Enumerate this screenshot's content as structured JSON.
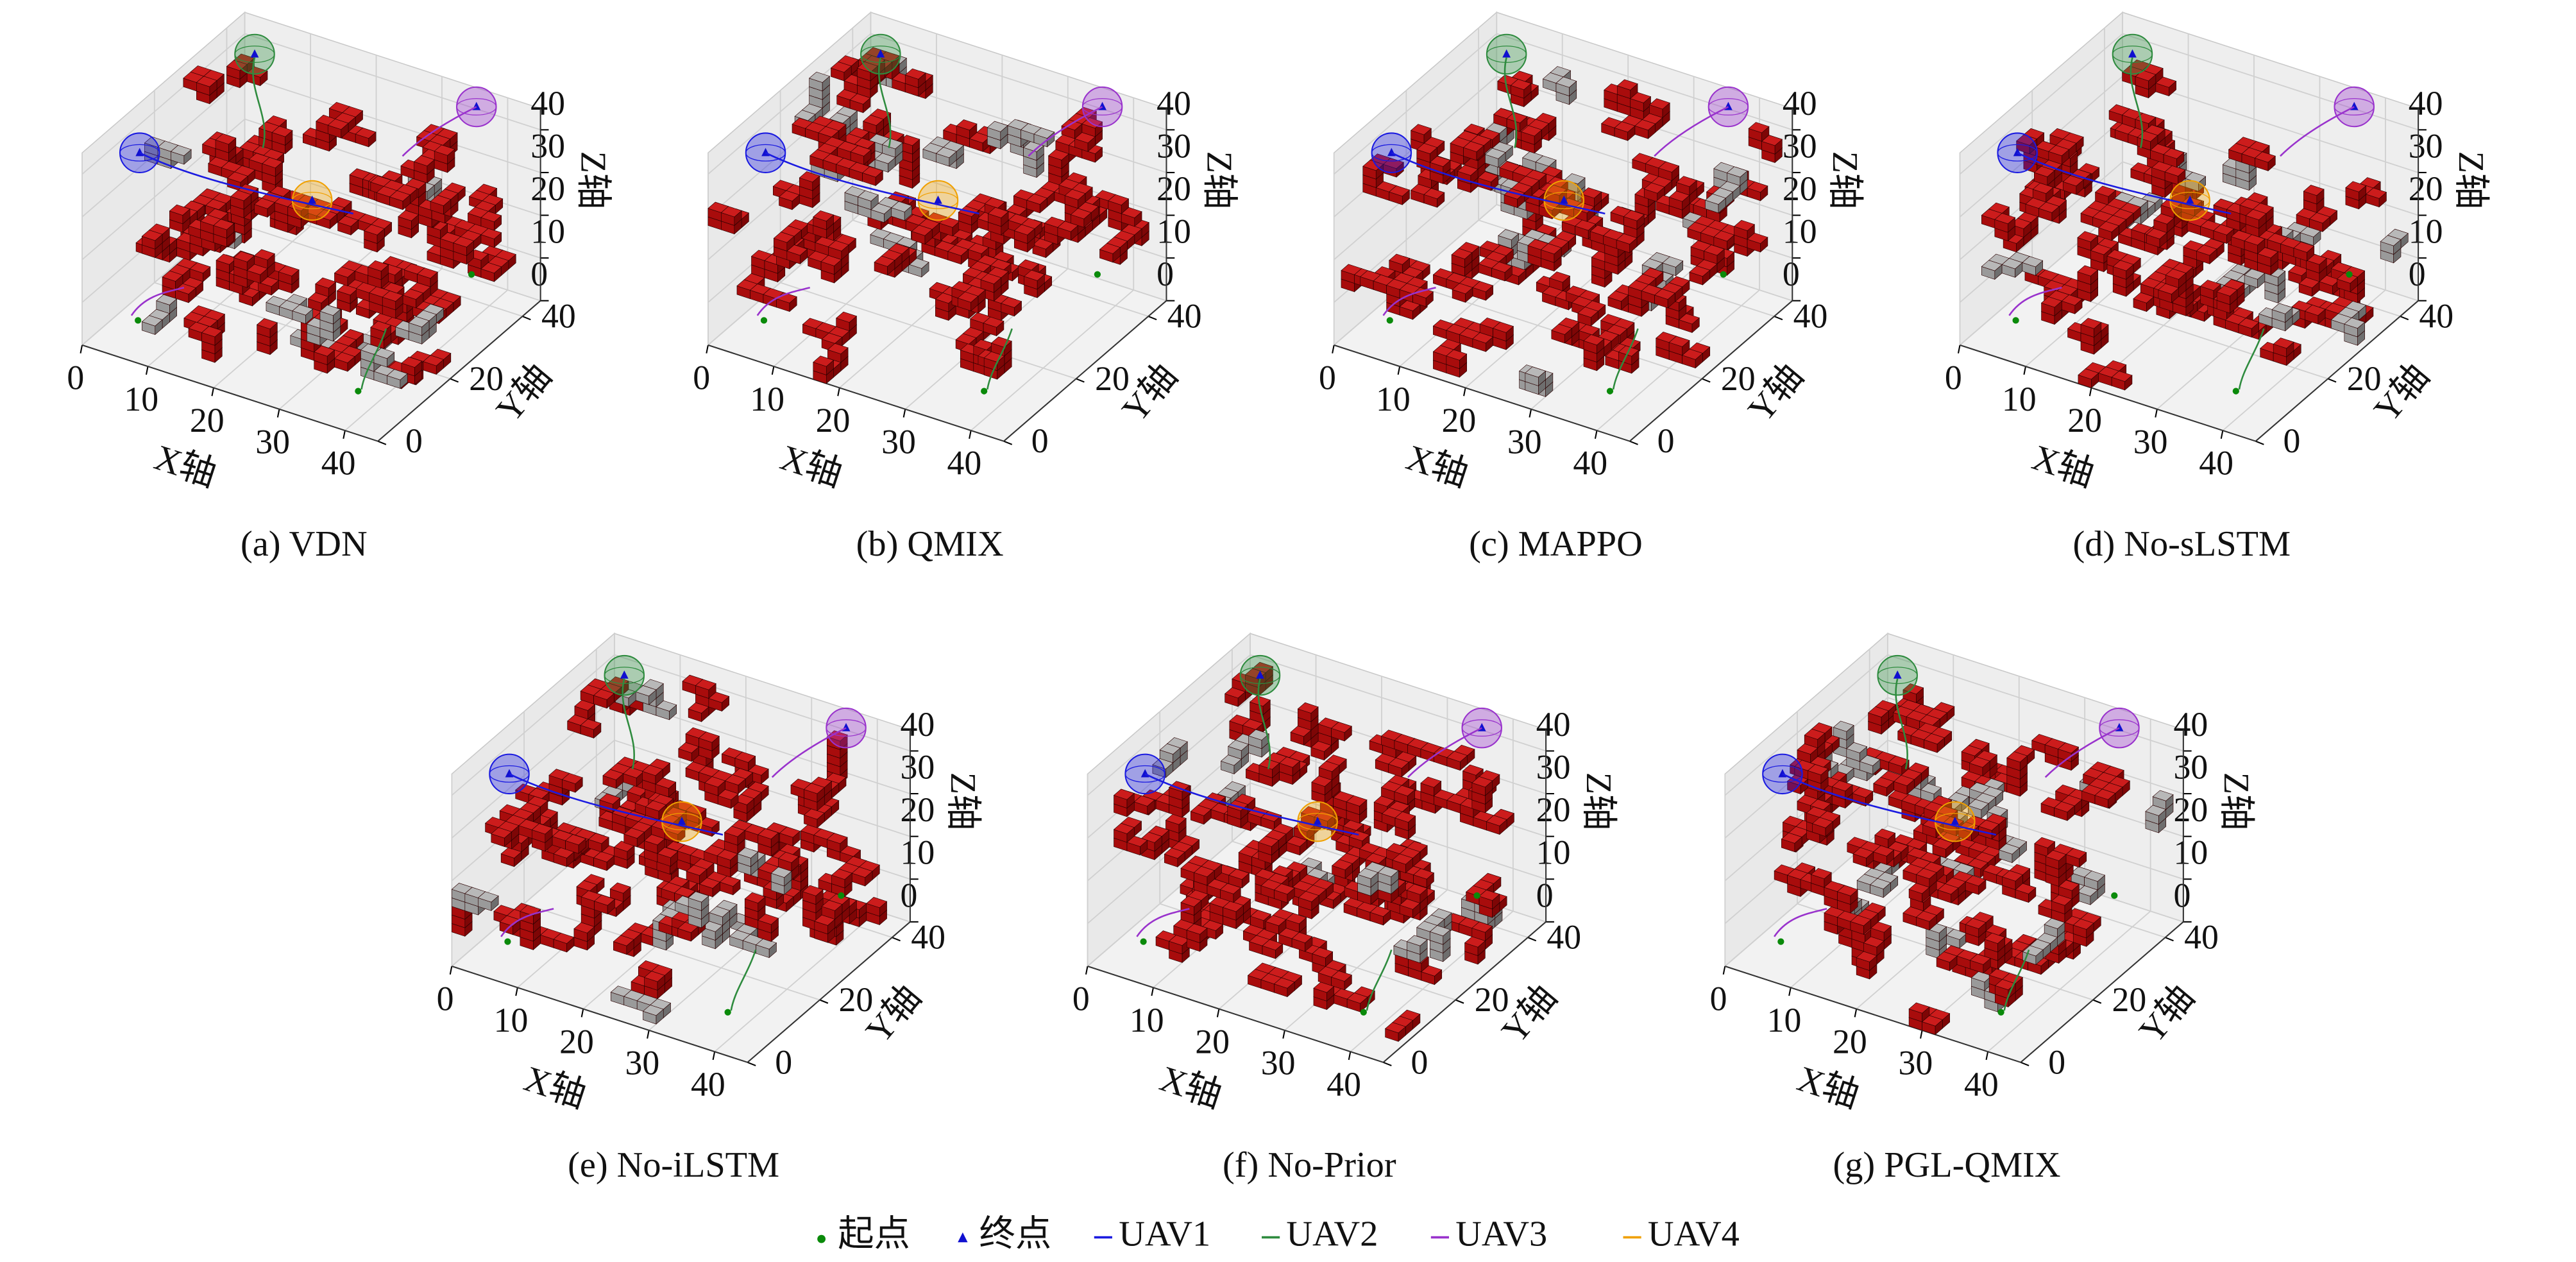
{
  "chart_data": [
    {
      "type": "voxel3d",
      "title": "(a) VDN",
      "xlabel": "X轴",
      "ylabel": "Y轴",
      "zlabel": "Z轴",
      "xlim": [
        0,
        45
      ],
      "ylim": [
        0,
        45
      ],
      "zlim": [
        0,
        45
      ],
      "xticks": [
        0,
        10,
        20,
        30,
        40
      ],
      "yticks": [
        0,
        20,
        40
      ],
      "zticks": [
        0,
        10,
        20,
        30,
        40
      ],
      "grid": true
    },
    {
      "type": "voxel3d",
      "title": "(b) QMIX",
      "xlabel": "X轴",
      "ylabel": "Y轴",
      "zlabel": "Z轴",
      "xlim": [
        0,
        45
      ],
      "ylim": [
        0,
        45
      ],
      "zlim": [
        0,
        45
      ],
      "xticks": [
        0,
        10,
        20,
        30,
        40
      ],
      "yticks": [
        0,
        20,
        40
      ],
      "zticks": [
        0,
        10,
        20,
        30,
        40
      ],
      "grid": true
    },
    {
      "type": "voxel3d",
      "title": "(c) MAPPO",
      "xlabel": "X轴",
      "ylabel": "Y轴",
      "zlabel": "Z轴",
      "xlim": [
        0,
        45
      ],
      "ylim": [
        0,
        45
      ],
      "zlim": [
        0,
        45
      ],
      "xticks": [
        0,
        10,
        20,
        30,
        40
      ],
      "yticks": [
        0,
        20,
        40
      ],
      "zticks": [
        0,
        10,
        20,
        30,
        40
      ],
      "grid": true
    },
    {
      "type": "voxel3d",
      "title": "(d) No-sLSTM",
      "xlabel": "X轴",
      "ylabel": "Y轴",
      "zlabel": "Z轴",
      "xlim": [
        0,
        45
      ],
      "ylim": [
        0,
        45
      ],
      "zlim": [
        0,
        45
      ],
      "xticks": [
        0,
        10,
        20,
        30,
        40
      ],
      "yticks": [
        0,
        20,
        40
      ],
      "zticks": [
        0,
        10,
        20,
        30,
        40
      ],
      "grid": true
    },
    {
      "type": "voxel3d",
      "title": "(e) No-iLSTM",
      "xlabel": "X轴",
      "ylabel": "Y轴",
      "zlabel": "Z轴",
      "xlim": [
        0,
        45
      ],
      "ylim": [
        0,
        45
      ],
      "zlim": [
        0,
        45
      ],
      "xticks": [
        0,
        10,
        20,
        30,
        40
      ],
      "yticks": [
        0,
        20,
        40
      ],
      "zticks": [
        0,
        10,
        20,
        30,
        40
      ],
      "grid": true
    },
    {
      "type": "voxel3d",
      "title": "(f) No-Prior",
      "xlabel": "X轴",
      "ylabel": "Y轴",
      "zlabel": "Z轴",
      "xlim": [
        0,
        45
      ],
      "ylim": [
        0,
        45
      ],
      "zlim": [
        0,
        45
      ],
      "xticks": [
        0,
        10,
        20,
        30,
        40
      ],
      "yticks": [
        0,
        20,
        40
      ],
      "zticks": [
        0,
        10,
        20,
        30,
        40
      ],
      "grid": true
    },
    {
      "type": "voxel3d",
      "title": "(g) PGL-QMIX",
      "xlabel": "X轴",
      "ylabel": "Y轴",
      "zlabel": "Z轴",
      "xlim": [
        0,
        45
      ],
      "ylim": [
        0,
        45
      ],
      "zlim": [
        0,
        45
      ],
      "xticks": [
        0,
        10,
        20,
        30,
        40
      ],
      "yticks": [
        0,
        20,
        40
      ],
      "zticks": [
        0,
        10,
        20,
        30,
        40
      ],
      "grid": true
    }
  ],
  "legend": {
    "items": [
      {
        "name": "起点",
        "color": "#0a8a0a",
        "marker": "dot"
      },
      {
        "name": "终点",
        "color": "#1010d0",
        "marker": "triangle"
      },
      {
        "name": "UAV1",
        "color": "#1a1ae0",
        "marker": "line"
      },
      {
        "name": "UAV2",
        "color": "#2e8b3e",
        "marker": "line"
      },
      {
        "name": "UAV3",
        "color": "#9932cc",
        "marker": "line"
      },
      {
        "name": "UAV4",
        "color": "#f0a000",
        "marker": "line"
      }
    ]
  }
}
